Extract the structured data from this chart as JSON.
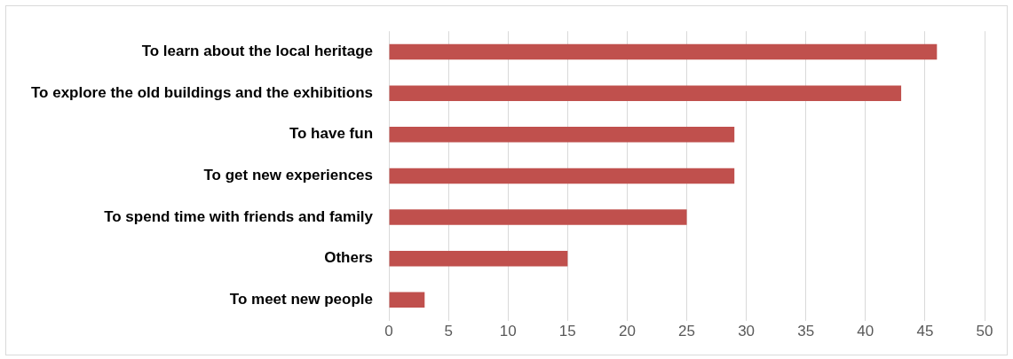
{
  "chart_data": {
    "type": "bar",
    "orientation": "horizontal",
    "categories": [
      "To learn about the local heritage",
      "To explore the old buildings and the exhibitions",
      "To have fun",
      "To get new experiences",
      "To spend time with friends and family",
      "Others",
      "To meet new people"
    ],
    "values": [
      46,
      43,
      29,
      29,
      25,
      15,
      3
    ],
    "color": "#c0504d",
    "xlim": [
      0,
      50
    ],
    "xticks": [
      0,
      5,
      10,
      15,
      20,
      25,
      30,
      35,
      40,
      45,
      50
    ],
    "grid": "x",
    "legend": false
  }
}
